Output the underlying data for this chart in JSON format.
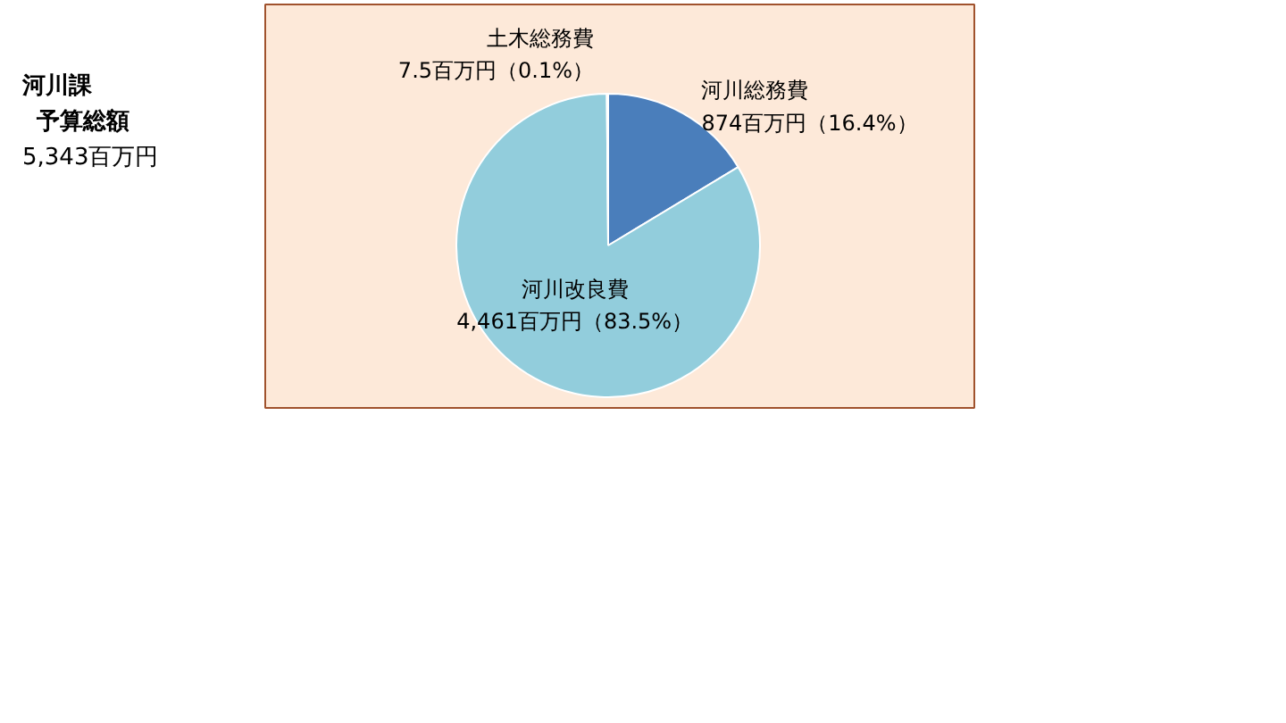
{
  "chart_data": {
    "type": "pie",
    "title": "河川課",
    "subtitle": "予算総額",
    "annotations": [
      "5,343百万円"
    ],
    "categories": [
      "河川総務費",
      "河川改良費",
      "土木総務費"
    ],
    "values": [
      874,
      4461,
      7.5
    ],
    "colors": [
      "#4a7ebb",
      "#92cddc",
      "#e0603a"
    ],
    "value_labels": [
      "874百万円（16.4%）",
      "4,461百万円（83.5%）",
      "7.5百万円（0.1%）"
    ]
  }
}
